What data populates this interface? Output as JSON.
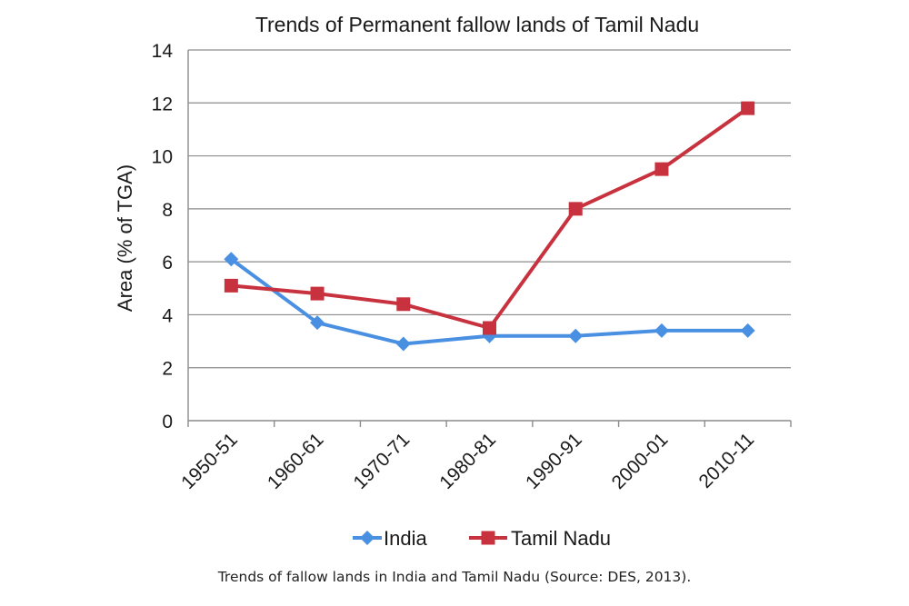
{
  "chart_data": {
    "type": "line",
    "title": "Trends of Permanent fallow lands of Tamil Nadu",
    "xlabel": "",
    "ylabel": "Area (% of TGA)",
    "categories": [
      "1950-51",
      "1960-61",
      "1970-71",
      "1980-81",
      "1990-91",
      "2000-01",
      "2010-11"
    ],
    "y_ticks": [
      "0",
      "2",
      "4",
      "6",
      "8",
      "10",
      "12",
      "14"
    ],
    "ylim": [
      0,
      14
    ],
    "grid": "horizontal",
    "legend_position": "bottom",
    "series": [
      {
        "name": "India",
        "color": "#4a90e2",
        "marker": "diamond",
        "values": [
          6.1,
          3.7,
          2.9,
          3.2,
          3.2,
          3.4,
          3.4
        ]
      },
      {
        "name": "Tamil Nadu",
        "color": "#c8323e",
        "marker": "square",
        "values": [
          5.1,
          4.8,
          4.4,
          3.5,
          8.0,
          9.5,
          11.8
        ]
      }
    ]
  },
  "caption": "Trends of fallow lands in India and Tamil Nadu (Source: DES, 2013)."
}
